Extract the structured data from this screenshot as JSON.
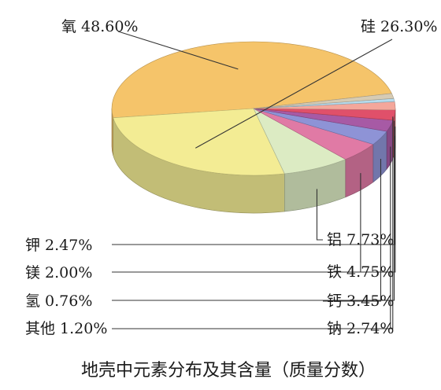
{
  "chart_data": {
    "type": "pie",
    "title": "地壳中元素分布及其含量（质量分数）",
    "slices": [
      {
        "label": "氧 48.60%",
        "value": 48.6,
        "color": "#f5c46a"
      },
      {
        "label": "硅 26.30%",
        "value": 26.3,
        "color": "#f3ec94"
      },
      {
        "label": "铝 7.73%",
        "value": 7.73,
        "color": "#dcebc3"
      },
      {
        "label": "铁 4.75%",
        "value": 4.75,
        "color": "#e07aa5"
      },
      {
        "label": "钙 3.45%",
        "value": 3.45,
        "color": "#8e93d6"
      },
      {
        "label": "钠 2.74%",
        "value": 2.74,
        "color": "#a75aa5"
      },
      {
        "label": "钾 2.47%",
        "value": 2.47,
        "color": "#e0506a"
      },
      {
        "label": "镁 2.00%",
        "value": 2.0,
        "color": "#f4a79b"
      },
      {
        "label": "氢 0.76%",
        "value": 0.76,
        "color": "#b6dcee"
      },
      {
        "label": "其他 1.20%",
        "value": 1.2,
        "color": "#d6cbb4"
      }
    ]
  }
}
